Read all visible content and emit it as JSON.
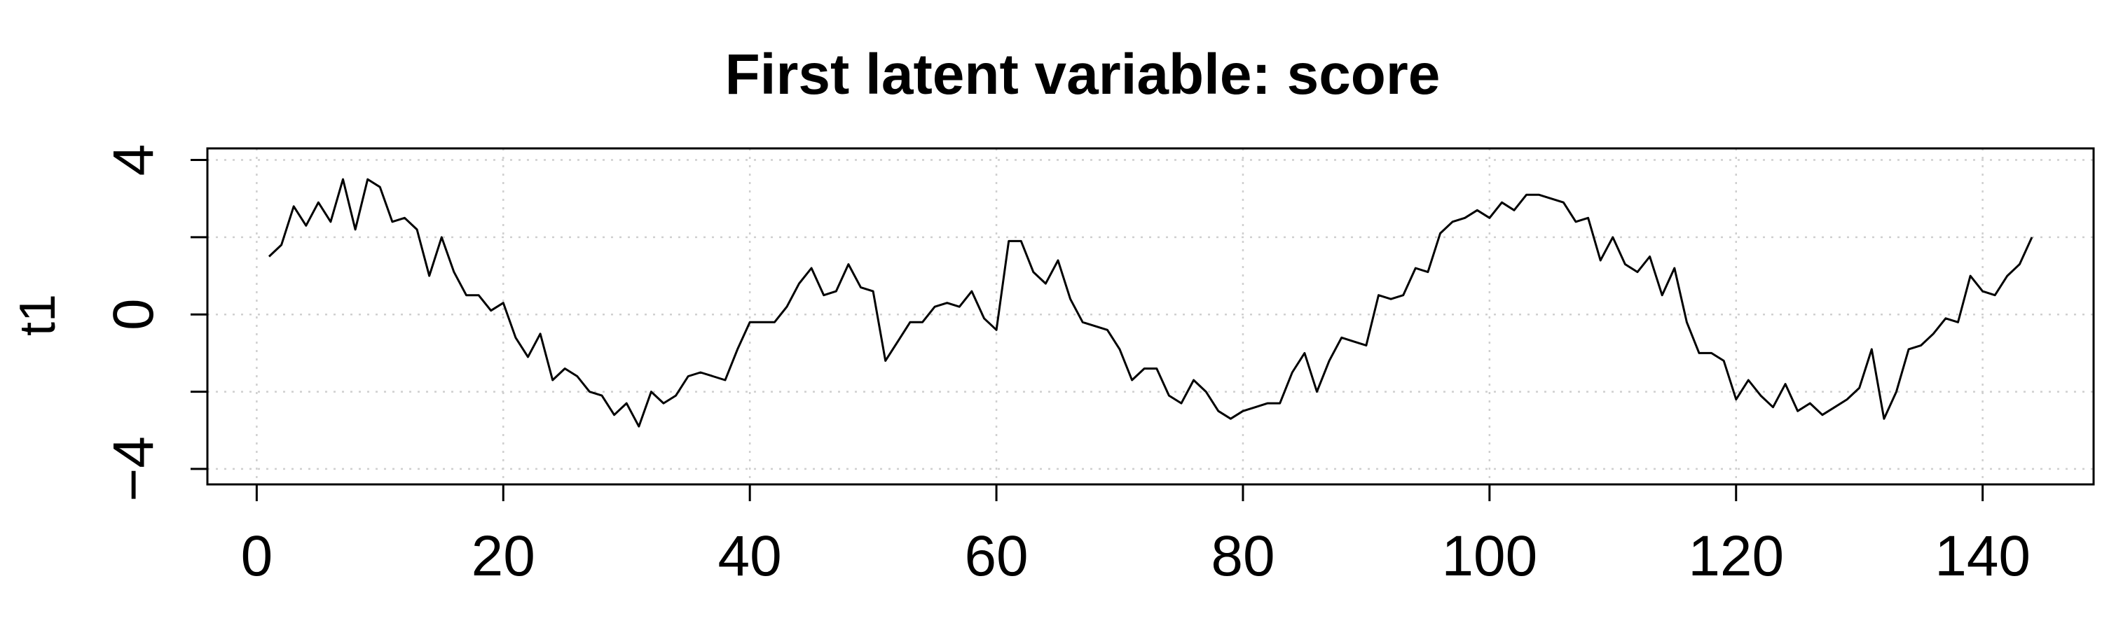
{
  "chart_data": {
    "type": "line",
    "title": "First latent variable: score",
    "xlabel": "",
    "ylabel": "t1",
    "xlim": [
      -4,
      149
    ],
    "ylim": [
      -4.4,
      4.3
    ],
    "xticks": [
      0,
      20,
      40,
      60,
      80,
      100,
      120,
      140
    ],
    "yticks": [
      -4,
      0,
      4
    ],
    "grid_y": [
      -4,
      -2,
      0,
      2,
      4
    ],
    "grid": true,
    "grid_style": "dotted",
    "line_color": "#000000",
    "grid_color": "#cfcfcf",
    "series": [
      {
        "x": [
          1,
          2,
          3,
          4,
          5,
          6,
          7,
          8,
          9,
          10,
          11,
          12,
          13,
          14,
          15,
          16,
          17,
          18,
          19,
          20,
          21,
          22,
          23,
          24,
          25,
          26,
          27,
          28,
          29,
          30,
          31,
          32,
          33,
          34,
          35,
          36,
          37,
          38,
          39,
          40,
          41,
          42,
          43,
          44,
          45,
          46,
          47,
          48,
          49,
          50,
          51,
          52,
          53,
          54,
          55,
          56,
          57,
          58,
          59,
          60,
          61,
          62,
          63,
          64,
          65,
          66,
          67,
          68,
          69,
          70,
          71,
          72,
          73,
          74,
          75,
          76,
          77,
          78,
          79,
          80,
          81,
          82,
          83,
          84,
          85,
          86,
          87,
          88,
          89,
          90,
          91,
          92,
          93,
          94,
          95,
          96,
          97,
          98,
          99,
          100,
          101,
          102,
          103,
          104,
          105,
          106,
          107,
          108,
          109,
          110,
          111,
          112,
          113,
          114,
          115,
          116,
          117,
          118,
          119,
          120,
          121,
          122,
          123,
          124,
          125,
          126,
          127,
          128,
          129,
          130,
          131,
          132,
          133,
          134,
          135,
          136,
          137,
          138,
          139,
          140,
          141,
          142,
          143,
          144
        ],
        "values": [
          1.5,
          1.8,
          2.8,
          2.3,
          2.9,
          2.4,
          3.5,
          2.2,
          3.5,
          3.3,
          2.4,
          2.5,
          2.2,
          1.0,
          2.0,
          1.1,
          0.5,
          0.5,
          0.1,
          0.3,
          -0.6,
          -1.1,
          -0.5,
          -1.7,
          -1.4,
          -1.6,
          -2.0,
          -2.1,
          -2.6,
          -2.3,
          -2.9,
          -2.0,
          -2.3,
          -2.1,
          -1.6,
          -1.5,
          -1.6,
          -1.7,
          -0.9,
          -0.2,
          -0.2,
          -0.2,
          0.2,
          0.8,
          1.2,
          0.5,
          0.6,
          1.3,
          0.7,
          0.6,
          -1.2,
          -0.7,
          -0.2,
          -0.2,
          0.2,
          0.3,
          0.2,
          0.6,
          -0.1,
          -0.4,
          1.9,
          1.9,
          1.1,
          0.8,
          1.4,
          0.4,
          -0.2,
          -0.3,
          -0.4,
          -0.9,
          -1.7,
          -1.4,
          -1.4,
          -2.1,
          -2.3,
          -1.7,
          -2.0,
          -2.5,
          -2.7,
          -2.5,
          -2.4,
          -2.3,
          -2.3,
          -1.5,
          -1.0,
          -2.0,
          -1.2,
          -0.6,
          -0.7,
          -0.8,
          0.5,
          0.4,
          0.5,
          1.2,
          1.1,
          2.1,
          2.4,
          2.5,
          2.7,
          2.5,
          2.9,
          2.7,
          3.1,
          3.1,
          3.0,
          2.9,
          2.4,
          2.5,
          1.4,
          2.0,
          1.3,
          1.1,
          1.5,
          0.5,
          1.2,
          -0.2,
          -1.0,
          -1.0,
          -1.2,
          -2.2,
          -1.7,
          -2.1,
          -2.4,
          -1.8,
          -2.5,
          -2.3,
          -2.6,
          -2.4,
          -2.2,
          -1.9,
          -0.9,
          -2.7,
          -2.0,
          -0.9,
          -0.8,
          -0.5,
          -0.1,
          -0.2,
          1.0,
          0.6,
          0.5,
          1.0,
          1.3,
          2.0
        ]
      }
    ]
  }
}
